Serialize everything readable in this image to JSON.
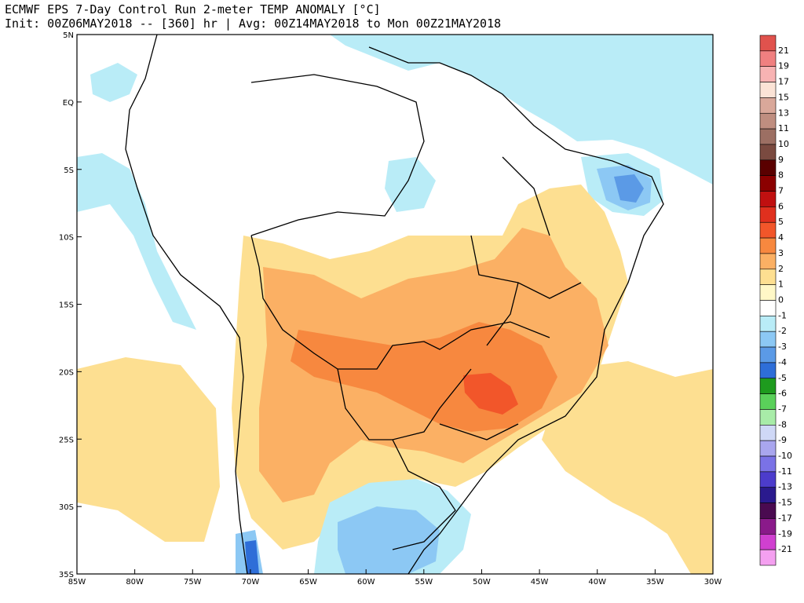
{
  "header": {
    "title_line1": "ECMWF EPS 7-Day Control Run 2-meter TEMP ANOMALY [°C]",
    "title_line2": "Init: 00Z06MAY2018 -- [360] hr | Avg: 00Z14MAY2018 to Mon 00Z21MAY2018"
  },
  "map": {
    "lat_labels": [
      "5N",
      "EQ",
      "5S",
      "10S",
      "15S",
      "20S",
      "25S",
      "30S",
      "35S"
    ],
    "lon_labels": [
      "85W",
      "80W",
      "75W",
      "70W",
      "65W",
      "60W",
      "55W",
      "50W",
      "45W",
      "40W",
      "35W",
      "30W"
    ]
  },
  "legend": {
    "levels": [
      {
        "label": "21",
        "color": "#e0524d"
      },
      {
        "label": "19",
        "color": "#f08080"
      },
      {
        "label": "17",
        "color": "#f7b3b3"
      },
      {
        "label": "15",
        "color": "#fbe3d6"
      },
      {
        "label": "13",
        "color": "#d9a89a"
      },
      {
        "label": "11",
        "color": "#bf8e80"
      },
      {
        "label": "10",
        "color": "#9c6f63"
      },
      {
        "label": "9",
        "color": "#7a4a40"
      },
      {
        "label": "8",
        "color": "#5a0000"
      },
      {
        "label": "7",
        "color": "#8b0000"
      },
      {
        "label": "6",
        "color": "#c01010"
      },
      {
        "label": "5",
        "color": "#e0301e"
      },
      {
        "label": "4",
        "color": "#f2562a"
      },
      {
        "label": "3",
        "color": "#f7883f"
      },
      {
        "label": "2",
        "color": "#fbb064"
      },
      {
        "label": "1",
        "color": "#fddf91"
      },
      {
        "label": "0",
        "color": "#fff8c7"
      },
      {
        "label": "-1",
        "color": "#ffffff"
      },
      {
        "label": "-2",
        "color": "#b9ecf7"
      },
      {
        "label": "-3",
        "color": "#8cc8f4"
      },
      {
        "label": "-4",
        "color": "#5b9ae6"
      },
      {
        "label": "-5",
        "color": "#2e6ed8"
      },
      {
        "label": "-6",
        "color": "#1e9b1e"
      },
      {
        "label": "-7",
        "color": "#5ad05a"
      },
      {
        "label": "-8",
        "color": "#a8eca8"
      },
      {
        "label": "-9",
        "color": "#cfd8f6"
      },
      {
        "label": "-10",
        "color": "#a9a6ee"
      },
      {
        "label": "-11",
        "color": "#7a72e6"
      },
      {
        "label": "-13",
        "color": "#4c3ccc"
      },
      {
        "label": "-15",
        "color": "#2a1a8e"
      },
      {
        "label": "-17",
        "color": "#4a0a50"
      },
      {
        "label": "-19",
        "color": "#8a1a8a"
      },
      {
        "label": "-21",
        "color": "#d040d0"
      },
      {
        "label": "",
        "color": "#f4a0f0"
      }
    ]
  }
}
